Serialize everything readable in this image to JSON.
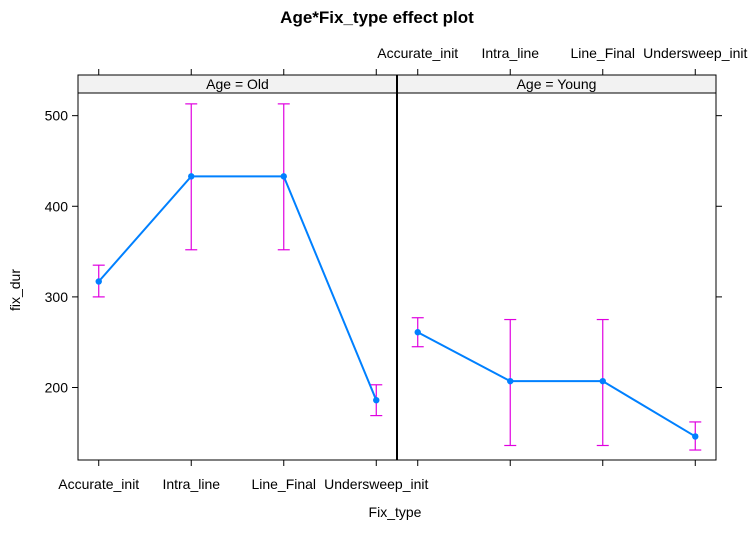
{
  "chart_data": {
    "type": "line",
    "title": "Age*Fix_type effect plot",
    "xlabel": "Fix_type",
    "ylabel": "fix_dur",
    "ylim": [
      120,
      525
    ],
    "yticks": [
      200,
      300,
      400,
      500
    ],
    "categories": [
      "Accurate_init",
      "Intra_line",
      "Line_Final",
      "Undersweep_init"
    ],
    "panels": [
      {
        "strip": "Age = Old",
        "values": [
          317,
          433,
          433,
          186
        ],
        "lower": [
          300,
          352,
          352,
          169
        ],
        "upper": [
          335,
          513,
          513,
          203
        ]
      },
      {
        "strip": "Age = Young",
        "values": [
          261,
          207,
          207,
          146
        ],
        "lower": [
          245,
          136,
          136,
          131
        ],
        "upper": [
          277,
          275,
          275,
          162
        ]
      }
    ],
    "colors": {
      "line": "#0080ff",
      "errorbar": "#e000e0",
      "strip": "#f2f2f2"
    }
  }
}
